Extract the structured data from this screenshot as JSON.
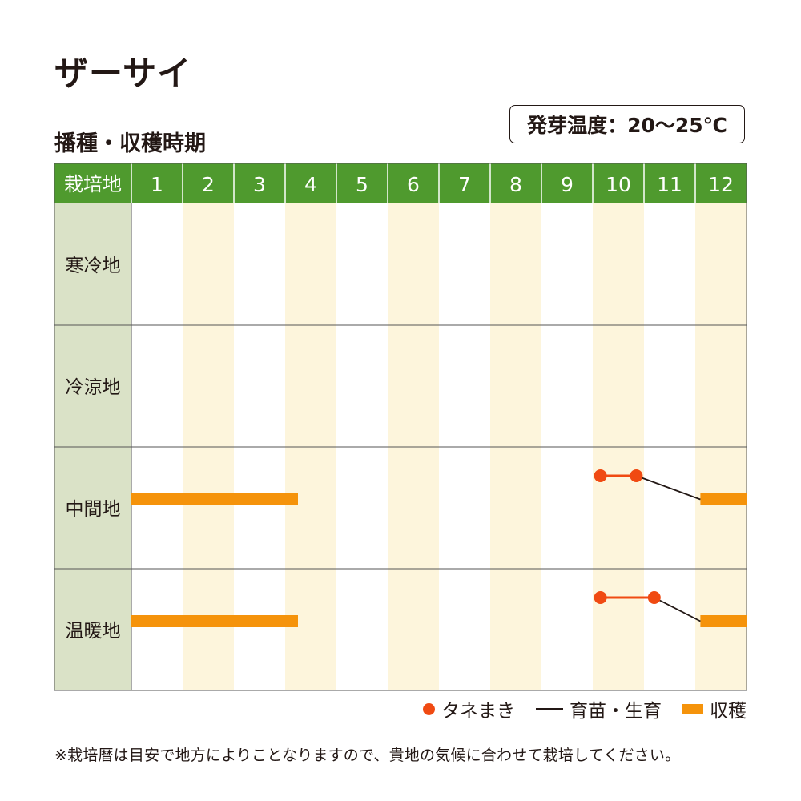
{
  "title": "ザーサイ",
  "subtitle": "播種・収穫時期",
  "germination_temp": "発芽温度：20〜25℃",
  "note": "※栽培暦は目安で地方によりことなりますので、貴地の気候に合わせて栽培してください。",
  "colors": {
    "header_green": "#4f9a2e",
    "row_header_bg": "#dae2c7",
    "stripe": "#fdf5dc",
    "sowing": "#f04a12",
    "harvest": "#f5930b",
    "growing": "#231815"
  },
  "legend": {
    "sowing": "タネまき",
    "growing": "育苗・生育",
    "harvest": "収穫"
  },
  "chart_data": {
    "type": "gantt",
    "header_label": "栽培地",
    "months": [
      "1",
      "2",
      "3",
      "4",
      "5",
      "6",
      "7",
      "8",
      "9",
      "10",
      "11",
      "12"
    ],
    "regions": [
      {
        "name": "寒冷地",
        "sowing": null,
        "growing": null,
        "harvest": []
      },
      {
        "name": "冷涼地",
        "sowing": null,
        "growing": null,
        "harvest": []
      },
      {
        "name": "中間地",
        "sowing": {
          "start": 10.15,
          "end": 10.85
        },
        "growing": {
          "from": 10.85,
          "to": 12.1
        },
        "harvest": [
          {
            "start": 1.0,
            "end": 4.25
          },
          {
            "start": 12.1,
            "end": 13.0
          }
        ]
      },
      {
        "name": "温暖地",
        "sowing": {
          "start": 10.15,
          "end": 11.2
        },
        "growing": {
          "from": 11.2,
          "to": 12.1
        },
        "harvest": [
          {
            "start": 1.0,
            "end": 4.25
          },
          {
            "start": 12.1,
            "end": 13.0
          }
        ]
      }
    ]
  }
}
